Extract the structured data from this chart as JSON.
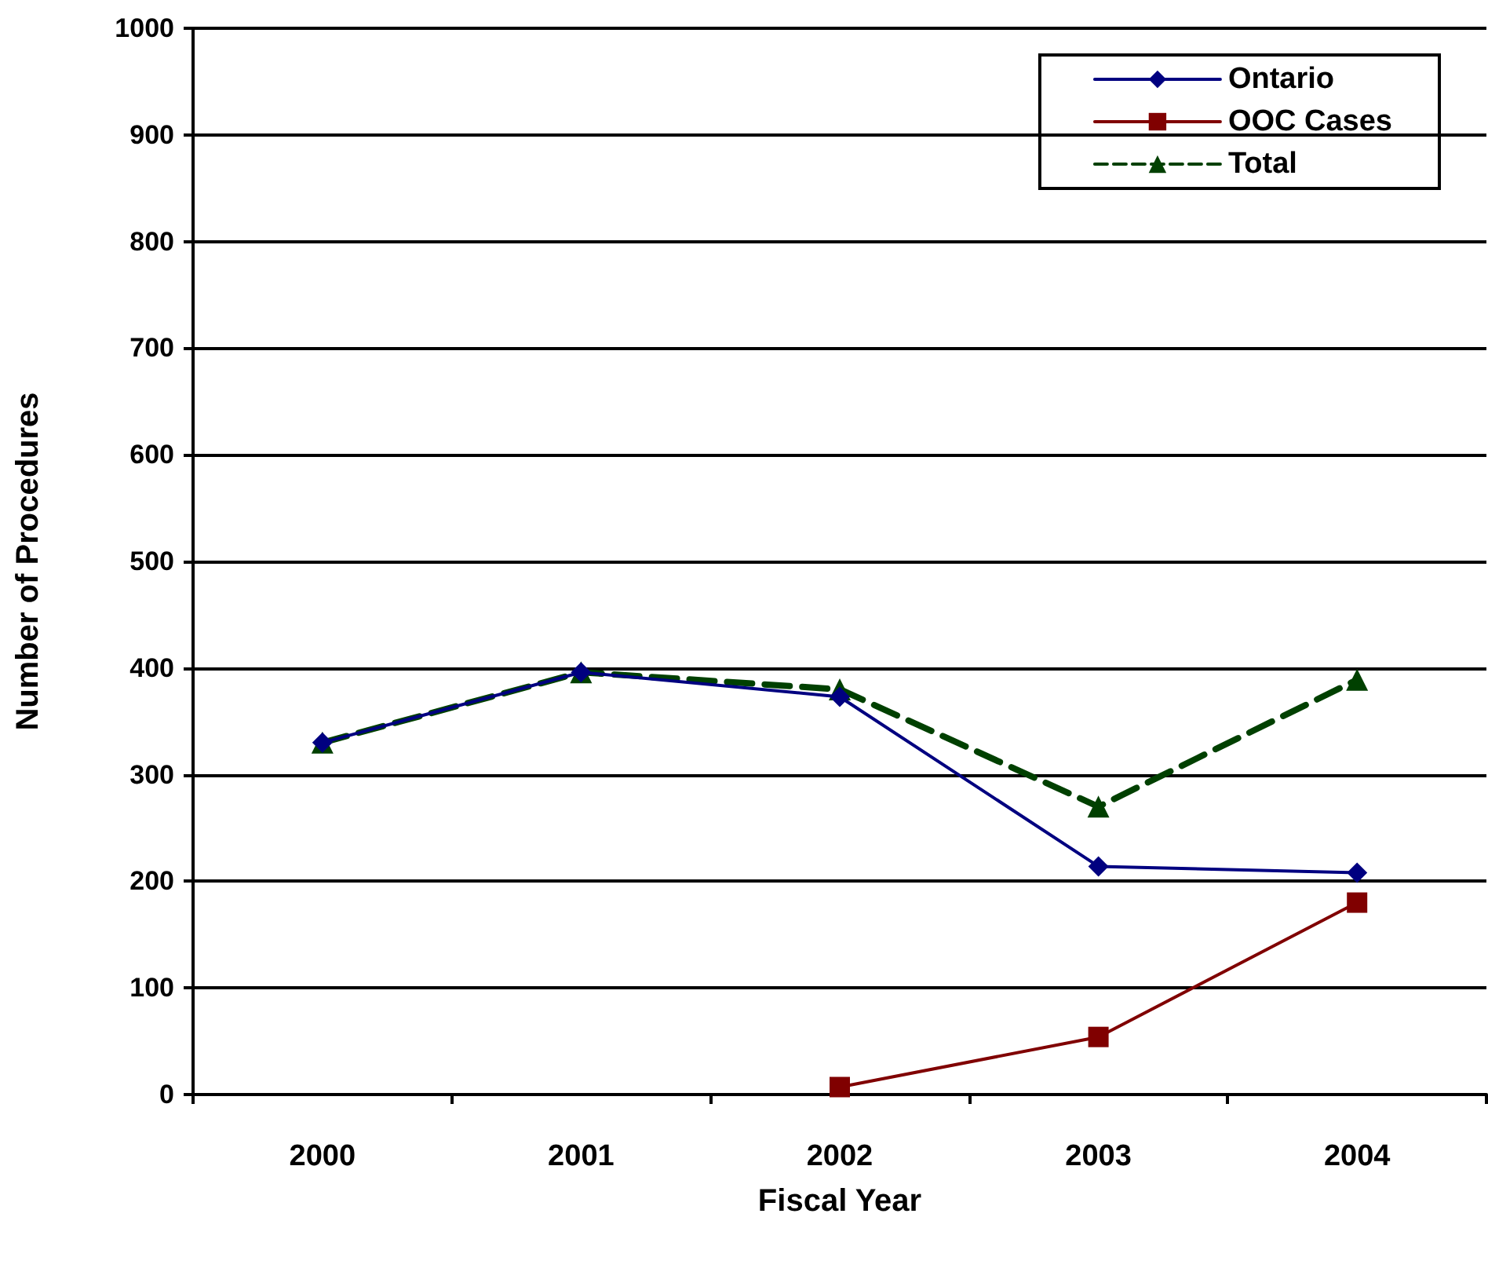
{
  "chart_data": {
    "type": "line",
    "xlabel": "Fiscal Year",
    "ylabel": "Number of Procedures",
    "categories": [
      "2000",
      "2001",
      "2002",
      "2003",
      "2004"
    ],
    "series": [
      {
        "name": "Ontario",
        "color": "#000080",
        "values": [
          330,
          396,
          373,
          214,
          208
        ],
        "marker": "diamond",
        "line_style": "solid"
      },
      {
        "name": "OOC Cases",
        "color": "#800000",
        "values": [
          null,
          null,
          7,
          54,
          180
        ],
        "marker": "square",
        "line_style": "solid"
      },
      {
        "name": "Total",
        "color": "#004000",
        "values": [
          330,
          396,
          380,
          270,
          389
        ],
        "marker": "triangle",
        "line_style": "dashed"
      }
    ],
    "ylim": [
      0,
      1000
    ],
    "yticks": [
      0,
      100,
      200,
      300,
      400,
      500,
      600,
      700,
      800,
      900,
      1000
    ],
    "grid": "y",
    "legend": "top right"
  }
}
